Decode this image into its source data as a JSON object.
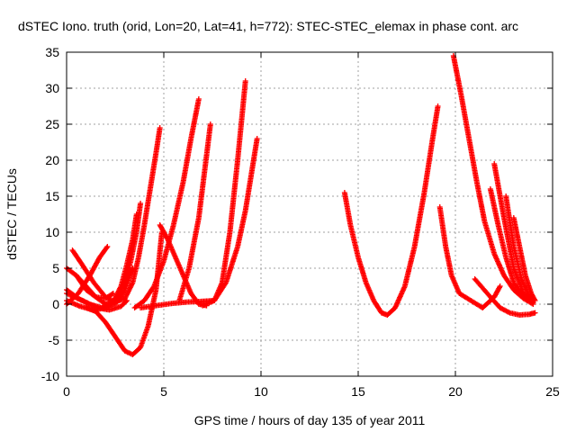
{
  "chart_data": {
    "type": "scatter",
    "title": "dSTEC Iono. truth (orid, Lon=20, Lat=41, h=772): STEC-STEC_elemax in phase cont. arc",
    "xlabel": "GPS time / hours of day 135 of year 2011",
    "ylabel": "dSTEC  / TECUs",
    "xlim": [
      0,
      25
    ],
    "ylim": [
      -10,
      35
    ],
    "xticks": [
      "0",
      "5",
      "10",
      "15",
      "20",
      "25"
    ],
    "yticks": [
      "-10",
      "-5",
      "0",
      "5",
      "10",
      "15",
      "20",
      "25",
      "30",
      "35"
    ],
    "grid": true,
    "marker": "+",
    "color": "#ff0000",
    "series": [
      {
        "x": [
          0.3,
          0.8,
          1.4,
          2.0,
          2.5,
          3.0,
          3.4,
          3.7,
          4.0,
          4.3,
          4.6,
          4.8
        ],
        "y": [
          7.5,
          5.5,
          3.0,
          1.0,
          0.3,
          0.8,
          3.0,
          6.5,
          11.0,
          16.0,
          21.0,
          24.5
        ]
      },
      {
        "x": [
          0.0,
          0.5,
          1.0,
          1.5,
          2.0,
          2.5,
          3.0,
          3.3,
          3.6,
          3.8
        ],
        "y": [
          5.0,
          4.0,
          2.5,
          1.0,
          0.0,
          0.5,
          3.0,
          6.0,
          10.0,
          14.0
        ]
      },
      {
        "x": [
          0.0,
          0.6,
          1.2,
          1.8,
          2.4,
          2.8,
          3.1,
          3.4,
          3.6
        ],
        "y": [
          2.0,
          0.8,
          0.0,
          -0.5,
          0.3,
          2.5,
          5.5,
          9.0,
          12.5
        ]
      },
      {
        "x": [
          0.0,
          0.7,
          1.4,
          2.0,
          2.6,
          3.0,
          3.4
        ],
        "y": [
          0.5,
          -0.3,
          -0.8,
          -0.5,
          0.3,
          2.0,
          5.0
        ]
      },
      {
        "x": [
          0.0,
          0.6,
          1.2,
          1.7,
          2.1
        ],
        "y": [
          0.0,
          1.5,
          4.0,
          6.5,
          8.0
        ]
      },
      {
        "x": [
          0.0,
          0.8,
          1.6,
          2.2,
          2.8,
          3.1
        ],
        "y": [
          1.5,
          0.5,
          -0.5,
          -0.8,
          -0.3,
          0.5
        ]
      },
      {
        "x": [
          0.5,
          1.0,
          1.5,
          2.0,
          2.4
        ],
        "y": [
          4.0,
          2.0,
          1.0,
          0.8,
          1.5
        ]
      },
      {
        "x": [
          1.0,
          1.5,
          2.0,
          2.5,
          3.0,
          3.4,
          3.8,
          4.2,
          4.6,
          4.9
        ],
        "y": [
          -0.5,
          -1.0,
          -2.5,
          -4.5,
          -6.5,
          -7.0,
          -6.0,
          -3.0,
          2.0,
          10.0
        ]
      },
      {
        "x": [
          3.5,
          4.0,
          4.5,
          5.0,
          5.5,
          6.0,
          6.4,
          6.8
        ],
        "y": [
          -0.5,
          0.5,
          2.5,
          6.0,
          11.0,
          17.0,
          23.0,
          28.5
        ]
      },
      {
        "x": [
          4.8,
          5.2,
          5.6,
          6.0,
          6.4,
          6.8,
          7.2
        ],
        "y": [
          11.0,
          9.0,
          6.5,
          4.0,
          1.5,
          0.0,
          -0.2
        ]
      },
      {
        "x": [
          5.8,
          6.3,
          6.8,
          7.1,
          7.4
        ],
        "y": [
          0.5,
          5.0,
          12.0,
          18.5,
          25.0
        ]
      },
      {
        "x": [
          3.8,
          4.6,
          5.4,
          6.2,
          7.0,
          7.6,
          8.0,
          8.4,
          8.8,
          9.2
        ],
        "y": [
          -0.5,
          -0.2,
          0.1,
          0.3,
          0.4,
          0.5,
          3.0,
          10.0,
          20.0,
          31.0
        ]
      },
      {
        "x": [
          7.0,
          7.6,
          8.2,
          8.8,
          9.2,
          9.5,
          9.8
        ],
        "y": [
          -0.2,
          0.5,
          3.0,
          8.0,
          13.0,
          18.0,
          23.0
        ]
      },
      {
        "x": [
          14.3,
          14.6,
          15.0,
          15.4,
          15.8,
          16.2,
          16.5,
          16.9,
          17.4,
          17.9,
          18.4,
          18.8,
          19.1
        ],
        "y": [
          15.5,
          11.0,
          6.5,
          3.0,
          0.5,
          -1.2,
          -1.5,
          -0.5,
          2.5,
          8.0,
          15.5,
          22.5,
          27.5
        ]
      },
      {
        "x": [
          19.9,
          20.3,
          20.7,
          21.1,
          21.5,
          22.0,
          22.5,
          23.0,
          23.5,
          24.0
        ],
        "y": [
          34.5,
          29.0,
          23.0,
          17.0,
          11.5,
          7.0,
          4.0,
          2.0,
          0.8,
          0.0
        ]
      },
      {
        "x": [
          19.2,
          19.5,
          19.8,
          20.2,
          20.8,
          21.4,
          22.0,
          22.3
        ],
        "y": [
          13.5,
          8.0,
          4.0,
          1.5,
          0.5,
          -0.5,
          1.0,
          2.5
        ]
      },
      {
        "x": [
          21.8,
          22.2,
          22.6,
          23.0,
          23.5,
          24.0
        ],
        "y": [
          16.0,
          11.0,
          6.5,
          3.0,
          1.0,
          0.2
        ]
      },
      {
        "x": [
          22.0,
          22.5,
          23.0,
          23.5,
          24.0
        ],
        "y": [
          19.5,
          12.0,
          5.0,
          1.5,
          0.2
        ]
      },
      {
        "x": [
          21.0,
          21.8,
          22.3,
          22.8,
          23.3,
          23.8,
          24.1
        ],
        "y": [
          3.5,
          1.0,
          -0.5,
          -1.2,
          -1.5,
          -1.4,
          -1.2
        ]
      },
      {
        "x": [
          22.6,
          23.0,
          23.4,
          23.8,
          24.0
        ],
        "y": [
          15.0,
          8.0,
          3.5,
          1.0,
          0.5
        ]
      },
      {
        "x": [
          23.0,
          23.3,
          23.6,
          23.9,
          24.1
        ],
        "y": [
          12.0,
          8.0,
          4.0,
          1.5,
          0.5
        ]
      }
    ]
  }
}
